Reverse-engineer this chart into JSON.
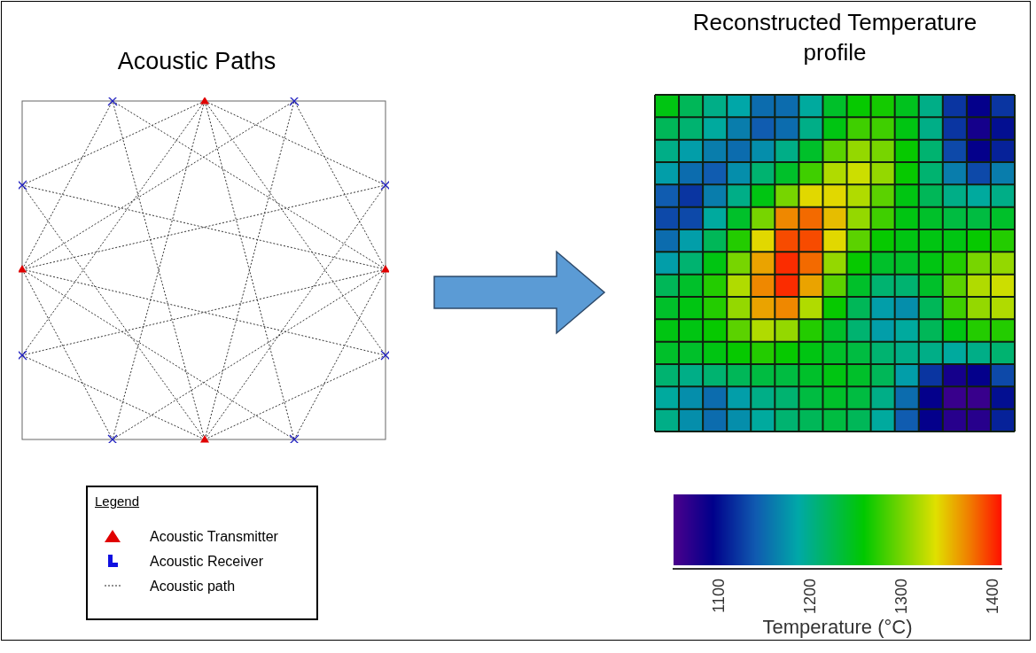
{
  "chart_data": [
    {
      "type": "other",
      "title": "Acoustic Paths",
      "annotations": [
        "Legend",
        "Acoustic Transmitter",
        "Acoustic Receiver",
        "Acoustic path"
      ]
    },
    {
      "type": "heatmap",
      "title": "Reconstructed Temperature profile",
      "clabel": "Temperature (°C)",
      "clim": [
        1049,
        1409
      ],
      "cticks": [
        1100,
        1200,
        1300,
        1400
      ],
      "tick_labels": false,
      "categories": [
        null,
        null,
        null,
        null,
        null,
        null,
        null,
        null,
        null,
        null,
        null,
        null,
        null,
        null,
        null
      ],
      "y_categories": [
        null,
        null,
        null,
        null,
        null,
        null,
        null,
        null,
        null,
        null,
        null,
        null,
        null,
        null,
        null
      ],
      "cells": [
        [
          1250,
          1220,
          1200,
          1185,
          1150,
          1150,
          1190,
          1240,
          1260,
          1265,
          1245,
          1200,
          1120,
          1090,
          1120
        ],
        [
          1220,
          1210,
          1190,
          1160,
          1140,
          1150,
          1200,
          1250,
          1280,
          1280,
          1250,
          1200,
          1120,
          1080,
          1100
        ],
        [
          1200,
          1180,
          1160,
          1150,
          1170,
          1200,
          1240,
          1290,
          1310,
          1300,
          1260,
          1210,
          1130,
          1090,
          1110
        ],
        [
          1180,
          1150,
          1140,
          1170,
          1210,
          1240,
          1280,
          1320,
          1330,
          1310,
          1260,
          1210,
          1160,
          1130,
          1160
        ],
        [
          1140,
          1120,
          1160,
          1200,
          1250,
          1300,
          1340,
          1340,
          1320,
          1290,
          1250,
          1220,
          1200,
          1190,
          1200
        ],
        [
          1130,
          1130,
          1190,
          1240,
          1300,
          1370,
          1380,
          1350,
          1310,
          1280,
          1250,
          1240,
          1230,
          1230,
          1240
        ],
        [
          1150,
          1180,
          1220,
          1270,
          1340,
          1390,
          1390,
          1340,
          1290,
          1260,
          1250,
          1250,
          1250,
          1260,
          1270
        ],
        [
          1180,
          1210,
          1250,
          1300,
          1360,
          1400,
          1380,
          1310,
          1260,
          1240,
          1240,
          1250,
          1270,
          1300,
          1310
        ],
        [
          1220,
          1240,
          1270,
          1320,
          1370,
          1400,
          1360,
          1290,
          1240,
          1210,
          1210,
          1240,
          1290,
          1320,
          1330
        ],
        [
          1240,
          1250,
          1270,
          1310,
          1360,
          1370,
          1320,
          1260,
          1220,
          1180,
          1170,
          1220,
          1280,
          1310,
          1320
        ],
        [
          1250,
          1250,
          1260,
          1290,
          1320,
          1310,
          1270,
          1240,
          1210,
          1180,
          1190,
          1220,
          1250,
          1270,
          1270
        ],
        [
          1240,
          1240,
          1250,
          1260,
          1270,
          1260,
          1250,
          1240,
          1230,
          1210,
          1200,
          1200,
          1190,
          1200,
          1210
        ],
        [
          1210,
          1200,
          1210,
          1220,
          1230,
          1230,
          1240,
          1250,
          1240,
          1220,
          1180,
          1120,
          1080,
          1090,
          1130
        ],
        [
          1190,
          1170,
          1150,
          1180,
          1200,
          1210,
          1230,
          1240,
          1230,
          1200,
          1150,
          1090,
          1060,
          1060,
          1100
        ],
        [
          1200,
          1170,
          1150,
          1170,
          1190,
          1210,
          1220,
          1230,
          1220,
          1190,
          1140,
          1090,
          1070,
          1070,
          1110
        ]
      ]
    }
  ]
}
